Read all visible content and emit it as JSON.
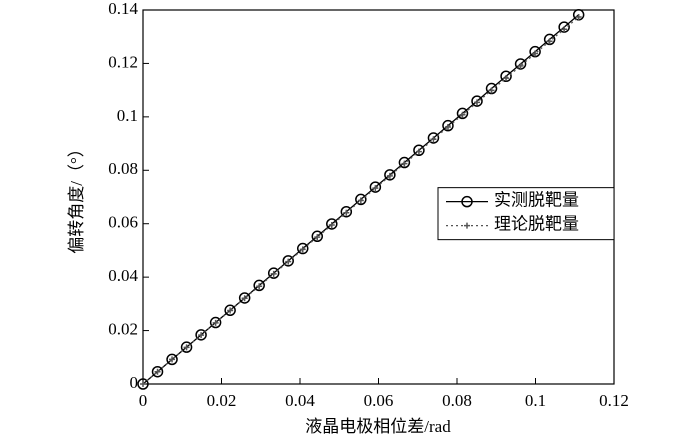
{
  "chart_data": {
    "type": "line",
    "x_label": "液晶电极相位差/rad",
    "y_label": "偏转角度/（°）",
    "x": [
      0,
      0.0037,
      0.0074,
      0.0111,
      0.0148,
      0.0185,
      0.0222,
      0.0259,
      0.0296,
      0.0333,
      0.037,
      0.0407,
      0.0444,
      0.0481,
      0.0518,
      0.0555,
      0.0592,
      0.0629,
      0.0666,
      0.0703,
      0.074,
      0.0777,
      0.0814,
      0.0851,
      0.0888,
      0.0925,
      0.0962,
      0.0999,
      0.1036,
      0.1073,
      0.111
    ],
    "series": [
      {
        "name": "实测脱靶量",
        "color": "#000000",
        "line": "solid",
        "marker": "circle",
        "values": [
          0,
          0.0046,
          0.0092,
          0.0138,
          0.0184,
          0.023,
          0.0276,
          0.0322,
          0.0369,
          0.0415,
          0.0461,
          0.0507,
          0.0553,
          0.0599,
          0.0645,
          0.0691,
          0.0737,
          0.0783,
          0.0829,
          0.0875,
          0.0921,
          0.0967,
          0.1013,
          0.1059,
          0.1106,
          0.1152,
          0.1198,
          0.1244,
          0.129,
          0.1336,
          0.1382
        ]
      },
      {
        "name": "理论脱靶量",
        "color": "#555555",
        "line": "dotted",
        "marker": "plus",
        "values": [
          0,
          0.0046,
          0.0092,
          0.0137,
          0.0183,
          0.0229,
          0.0275,
          0.0321,
          0.0366,
          0.0412,
          0.0458,
          0.0504,
          0.055,
          0.0595,
          0.0641,
          0.0687,
          0.0733,
          0.0779,
          0.0825,
          0.087,
          0.0916,
          0.0962,
          0.1008,
          0.1054,
          0.1099,
          0.1145,
          0.1191,
          0.1237,
          0.1283,
          0.1328,
          0.1374
        ]
      }
    ],
    "xlim": [
      0,
      0.12
    ],
    "xticks": [
      0,
      0.02,
      0.04,
      0.06,
      0.08,
      0.1,
      0.12
    ],
    "ylim": [
      0,
      0.14
    ],
    "yticks": [
      0,
      0.02,
      0.04,
      0.06,
      0.08,
      0.1,
      0.12,
      0.14
    ],
    "grid": false,
    "legend": "center right"
  }
}
